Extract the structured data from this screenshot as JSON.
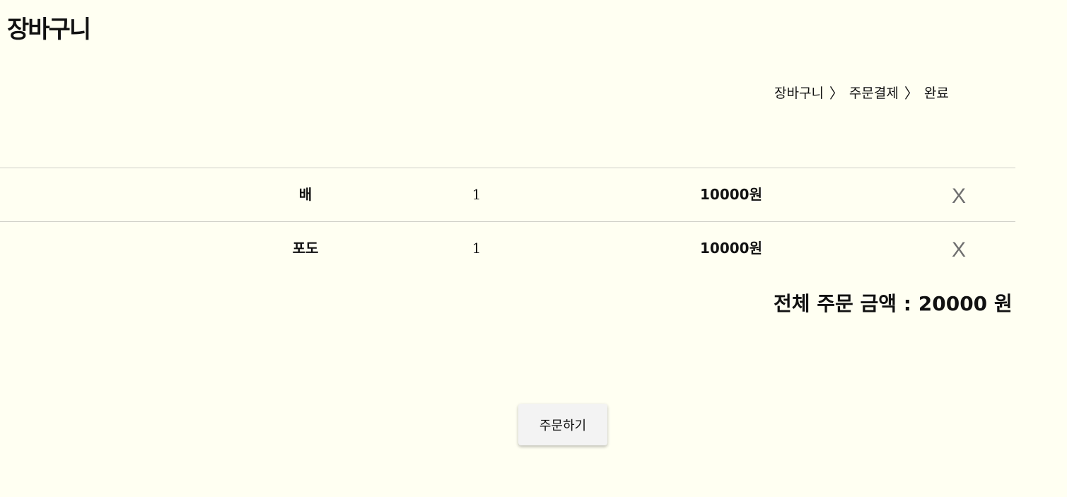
{
  "page": {
    "title": "장바구니"
  },
  "breadcrumb": {
    "steps": [
      "장바구니",
      "주문결제",
      "완료"
    ],
    "separator": "〉"
  },
  "cart": {
    "items": [
      {
        "name": "배",
        "quantity": "1",
        "price": "10000원",
        "remove_label": "X"
      },
      {
        "name": "포도",
        "quantity": "1",
        "price": "10000원",
        "remove_label": "X"
      }
    ],
    "total_label": "전체 주문 금액 : 20000 원"
  },
  "actions": {
    "order_label": "주문하기"
  },
  "colors": {
    "background": "#fffff2",
    "divider": "#cfcfc8",
    "remove_icon": "#6f6f6f",
    "button_bg": "#f3f3f3"
  }
}
